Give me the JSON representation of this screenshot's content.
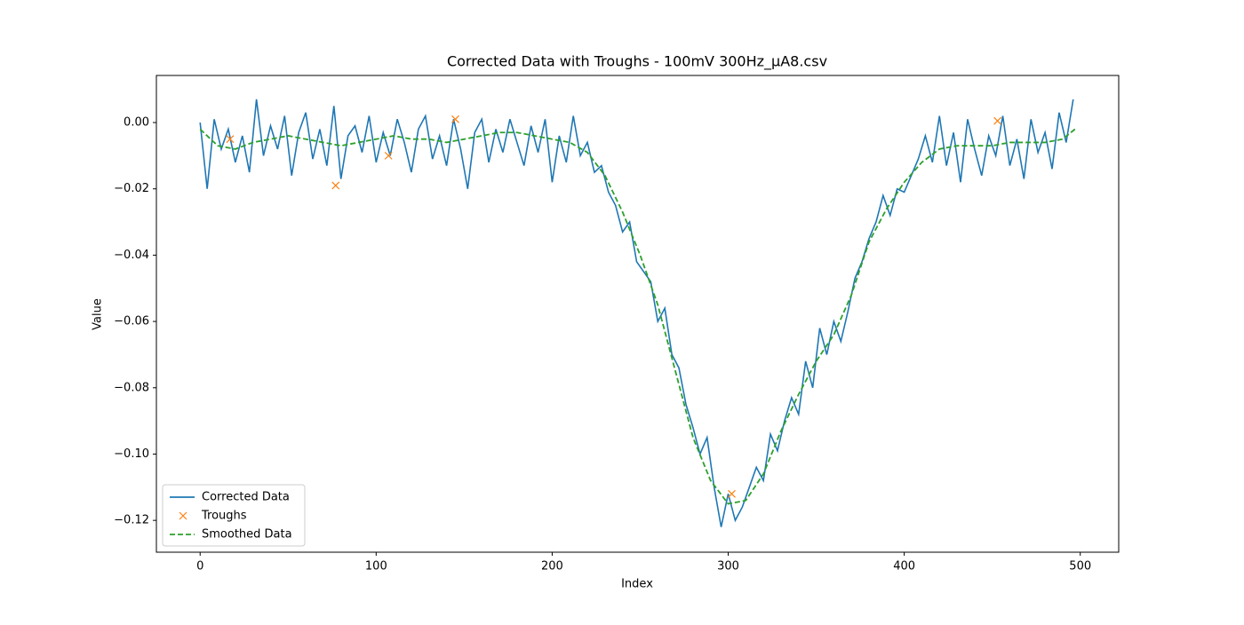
{
  "chart_data": {
    "type": "line",
    "title": "Corrected Data with Troughs - 100mV 300Hz_µA8.csv",
    "x_label": "Index",
    "y_label": "Value",
    "xlim": [
      -24.85,
      521.85
    ],
    "ylim": [
      -0.1296,
      0.0142
    ],
    "xticks": [
      0,
      100,
      200,
      300,
      400,
      500
    ],
    "yticks": [
      {
        "value": 0,
        "label": "0.00"
      },
      {
        "value": -0.02,
        "label": "−0.02"
      },
      {
        "value": -0.04,
        "label": "−0.04"
      },
      {
        "value": -0.06,
        "label": "−0.06"
      },
      {
        "value": -0.08,
        "label": "−0.08"
      },
      {
        "value": -0.1,
        "label": "−0.10"
      },
      {
        "value": -0.12,
        "label": "−0.12"
      }
    ],
    "legend": "lower left",
    "series": [
      {
        "name": "Corrected Data",
        "color": "#1f77b4",
        "style": "solid",
        "x": [
          0,
          4,
          8,
          12,
          16,
          20,
          24,
          28,
          32,
          36,
          40,
          44,
          48,
          52,
          56,
          60,
          64,
          68,
          72,
          76,
          80,
          84,
          88,
          92,
          96,
          100,
          104,
          108,
          112,
          116,
          120,
          124,
          128,
          132,
          136,
          140,
          144,
          148,
          152,
          156,
          160,
          164,
          168,
          172,
          176,
          180,
          184,
          188,
          192,
          196,
          200,
          204,
          208,
          212,
          216,
          220,
          224,
          228,
          232,
          236,
          240,
          244,
          248,
          252,
          256,
          260,
          264,
          268,
          272,
          276,
          280,
          284,
          288,
          292,
          296,
          300,
          304,
          308,
          312,
          316,
          320,
          324,
          328,
          332,
          336,
          340,
          344,
          348,
          352,
          356,
          360,
          364,
          368,
          372,
          376,
          380,
          384,
          388,
          392,
          396,
          400,
          404,
          408,
          412,
          416,
          420,
          424,
          428,
          432,
          436,
          440,
          444,
          448,
          452,
          456,
          460,
          464,
          468,
          472,
          476,
          480,
          484,
          488,
          492,
          496
        ],
        "values": [
          0.0,
          -0.02,
          0.001,
          -0.008,
          -0.002,
          -0.012,
          -0.004,
          -0.015,
          0.007,
          -0.01,
          -0.001,
          -0.008,
          0.002,
          -0.016,
          -0.003,
          0.003,
          -0.011,
          -0.002,
          -0.013,
          0.005,
          -0.017,
          -0.004,
          -0.001,
          -0.009,
          0.002,
          -0.012,
          -0.003,
          -0.01,
          0.001,
          -0.006,
          -0.015,
          -0.002,
          0.002,
          -0.011,
          -0.004,
          -0.013,
          0.001,
          -0.008,
          -0.02,
          -0.003,
          0.001,
          -0.012,
          -0.002,
          -0.009,
          0.001,
          -0.006,
          -0.013,
          -0.001,
          -0.009,
          0.001,
          -0.018,
          -0.004,
          -0.012,
          0.002,
          -0.01,
          -0.006,
          -0.015,
          -0.013,
          -0.021,
          -0.025,
          -0.033,
          -0.03,
          -0.042,
          -0.045,
          -0.048,
          -0.06,
          -0.056,
          -0.07,
          -0.074,
          -0.085,
          -0.092,
          -0.1,
          -0.095,
          -0.11,
          -0.122,
          -0.112,
          -0.12,
          -0.116,
          -0.11,
          -0.104,
          -0.108,
          -0.094,
          -0.099,
          -0.09,
          -0.083,
          -0.088,
          -0.072,
          -0.08,
          -0.062,
          -0.07,
          -0.06,
          -0.066,
          -0.057,
          -0.047,
          -0.042,
          -0.035,
          -0.03,
          -0.022,
          -0.028,
          -0.02,
          -0.021,
          -0.016,
          -0.011,
          -0.004,
          -0.012,
          0.002,
          -0.013,
          -0.003,
          -0.018,
          0.001,
          -0.008,
          -0.016,
          -0.004,
          -0.01,
          0.002,
          -0.013,
          -0.005,
          -0.017,
          0.001,
          -0.009,
          -0.003,
          -0.014,
          0.003,
          -0.006,
          0.007
        ]
      },
      {
        "name": "Troughs",
        "color": "#ff7f0e",
        "style": "marker",
        "x": [
          17,
          77,
          107,
          145,
          302,
          453
        ],
        "values": [
          -0.005,
          -0.019,
          -0.01,
          0.001,
          -0.112,
          0.0005
        ]
      },
      {
        "name": "Smoothed Data",
        "color": "#2ca02c",
        "style": "dashed",
        "x": [
          0,
          10,
          20,
          30,
          40,
          50,
          60,
          70,
          80,
          90,
          100,
          110,
          120,
          130,
          140,
          150,
          160,
          170,
          180,
          190,
          200,
          210,
          220,
          230,
          240,
          250,
          260,
          270,
          280,
          290,
          300,
          310,
          320,
          330,
          340,
          350,
          360,
          370,
          380,
          390,
          400,
          410,
          420,
          430,
          440,
          450,
          460,
          470,
          480,
          490,
          497
        ],
        "values": [
          -0.002,
          -0.007,
          -0.008,
          -0.006,
          -0.005,
          -0.004,
          -0.005,
          -0.006,
          -0.007,
          -0.006,
          -0.005,
          -0.004,
          -0.005,
          -0.005,
          -0.006,
          -0.005,
          -0.004,
          -0.003,
          -0.003,
          -0.004,
          -0.005,
          -0.006,
          -0.009,
          -0.016,
          -0.027,
          -0.04,
          -0.055,
          -0.075,
          -0.095,
          -0.108,
          -0.115,
          -0.114,
          -0.106,
          -0.093,
          -0.082,
          -0.072,
          -0.064,
          -0.052,
          -0.036,
          -0.026,
          -0.018,
          -0.012,
          -0.008,
          -0.007,
          -0.007,
          -0.007,
          -0.006,
          -0.006,
          -0.006,
          -0.005,
          -0.002
        ]
      }
    ]
  }
}
